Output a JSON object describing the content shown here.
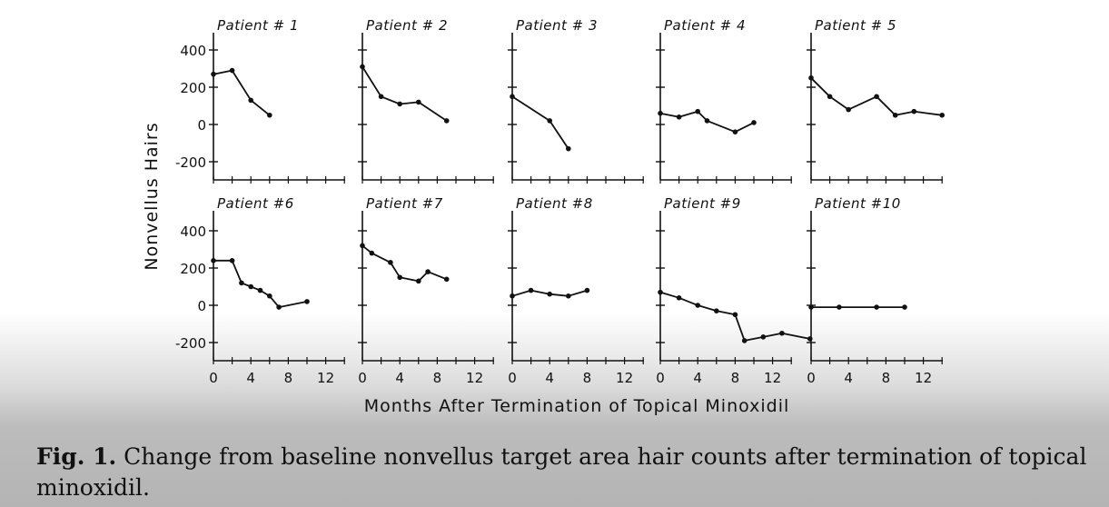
{
  "chart_data": [
    {
      "type": "line",
      "title": "Patient # 1",
      "x": [
        0,
        2,
        4,
        6
      ],
      "y": [
        270,
        290,
        130,
        50
      ]
    },
    {
      "type": "line",
      "title": "Patient # 2",
      "x": [
        0,
        2,
        4,
        6,
        9
      ],
      "y": [
        310,
        150,
        110,
        120,
        20
      ]
    },
    {
      "type": "line",
      "title": "Patient # 3",
      "x": [
        0,
        4,
        6
      ],
      "y": [
        150,
        20,
        -130
      ]
    },
    {
      "type": "line",
      "title": "Patient # 4",
      "x": [
        0,
        2,
        4,
        5,
        8,
        10
      ],
      "y": [
        60,
        40,
        70,
        20,
        -40,
        10
      ]
    },
    {
      "type": "line",
      "title": "Patient # 5",
      "x": [
        0,
        2,
        4,
        7,
        9,
        11,
        14
      ],
      "y": [
        250,
        150,
        80,
        150,
        50,
        70,
        50
      ]
    },
    {
      "type": "line",
      "title": "Patient #6",
      "x": [
        0,
        2,
        3,
        4,
        5,
        6,
        7,
        10
      ],
      "y": [
        240,
        240,
        120,
        100,
        80,
        50,
        -10,
        20
      ]
    },
    {
      "type": "line",
      "title": "Patient #7",
      "x": [
        0,
        1,
        3,
        4,
        6,
        7,
        9
      ],
      "y": [
        320,
        280,
        230,
        150,
        130,
        180,
        140
      ]
    },
    {
      "type": "line",
      "title": "Patient #8",
      "x": [
        0,
        2,
        4,
        6,
        8
      ],
      "y": [
        50,
        80,
        60,
        50,
        80
      ]
    },
    {
      "type": "line",
      "title": "Patient #9",
      "x": [
        0,
        2,
        4,
        6,
        8,
        9,
        11,
        13,
        16
      ],
      "y": [
        70,
        40,
        0,
        -30,
        -50,
        -190,
        -170,
        -150,
        -180
      ]
    },
    {
      "type": "line",
      "title": "Patient #10",
      "x": [
        0,
        3,
        7,
        10
      ],
      "y": [
        -10,
        -10,
        -10,
        -10
      ]
    }
  ],
  "axes": {
    "ylabel": "Nonvellus Hairs",
    "xlabel": "Months After Termination of Topical Minoxidil",
    "y_ticks": [
      400,
      200,
      0,
      -200
    ],
    "y_tick_labels": [
      "400",
      "200",
      "0",
      "-200"
    ],
    "x_ticks": [
      0,
      4,
      8,
      12
    ],
    "x_tick_labels": [
      "0",
      "4",
      "8",
      "12"
    ],
    "xlim": [
      0,
      18
    ],
    "ylim": [
      -300,
      500
    ]
  },
  "caption": {
    "label": "Fig. 1.",
    "text": " Change from baseline nonvellus target area hair counts after termination of topical minoxidil."
  }
}
